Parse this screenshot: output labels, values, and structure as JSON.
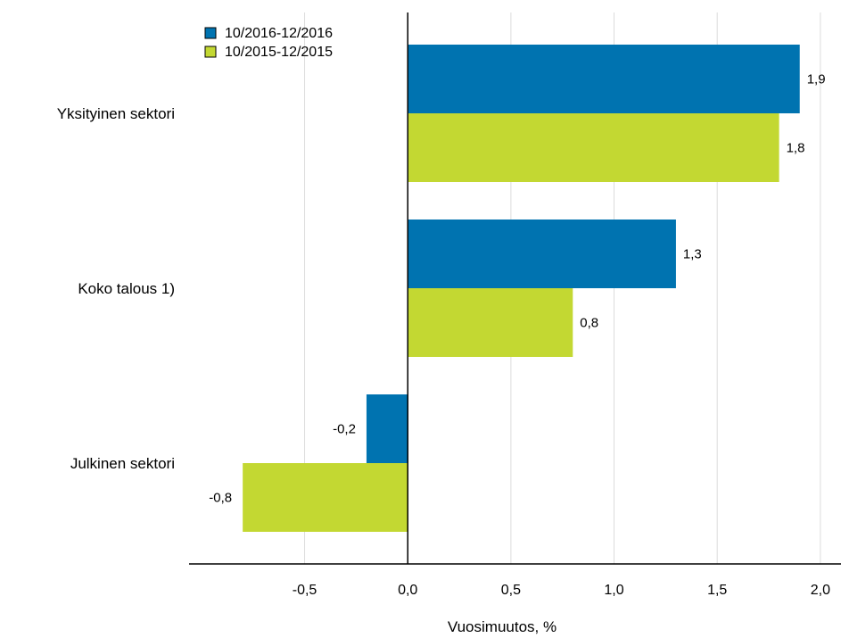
{
  "chart_data": {
    "type": "bar",
    "orientation": "horizontal",
    "categories": [
      "Yksityinen sektori",
      "Koko talous 1)",
      "Julkinen sektori"
    ],
    "series": [
      {
        "name": "10/2016-12/2016",
        "values": [
          1.9,
          1.3,
          -0.2
        ],
        "labels": [
          "1,9",
          "1,3",
          "-0,2"
        ],
        "color": "#0073b0"
      },
      {
        "name": "10/2015-12/2015",
        "values": [
          1.8,
          0.8,
          -0.8
        ],
        "labels": [
          "1,8",
          "0,8",
          "-0,8"
        ],
        "color": "#c3d832"
      }
    ],
    "xlabel": "Vuosimuutos, %",
    "ylabel": "",
    "xlim": [
      -1.06,
      2.1
    ],
    "x_ticks": [
      -0.5,
      0.0,
      0.5,
      1.0,
      1.5,
      2.0
    ],
    "x_tick_labels": [
      "-0,5",
      "0,0",
      "0,5",
      "1,0",
      "1,5",
      "2,0"
    ],
    "grid": "vertical",
    "legend_position": "top-left"
  }
}
